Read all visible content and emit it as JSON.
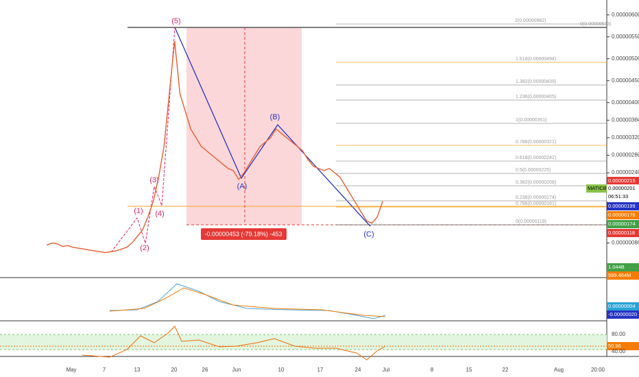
{
  "chart_data": {
    "type": "line",
    "symbol": "MATICBTC",
    "color": "#e8663c",
    "values": [
      7.5e-07,
      8e-07,
      7.8e-07,
      7.2e-07,
      7.4e-07,
      7e-07,
      6.8e-07,
      6.6e-07,
      6.4e-07,
      6.2e-07,
      6e-07,
      5.8e-07,
      6e-07,
      6.2e-07,
      6.6e-07,
      7e-07,
      8e-07,
      9.5e-07,
      1.1e-06,
      1.4e-06,
      1.75e-06,
      2.3e-06,
      3e-06,
      4.2e-06,
      5.4e-06,
      4.2e-06,
      3.8e-06,
      3.4e-06,
      3.2e-06,
      3e-06,
      2.9e-06,
      2.8e-06,
      2.7e-06,
      2.6e-06,
      2.5e-06,
      2.45e-06,
      2.25e-06,
      2.4e-06,
      2.6e-06,
      2.8e-06,
      3e-06,
      3.1e-06,
      3.2e-06,
      3.4e-06,
      3.3e-06,
      3.2e-06,
      3.1e-06,
      3e-06,
      2.9e-06,
      2.7e-06,
      2.55e-06,
      2.5e-06,
      2.45e-06,
      2.5e-06,
      2.4e-06,
      2.3e-06,
      2.1e-06,
      1.9e-06,
      1.7e-06,
      1.5e-06,
      1.3e-06,
      1.25e-06,
      1.4e-06,
      1.75e-06
    ],
    "ylim": [
      1e-08,
      6.34e-06
    ],
    "yticks": [
      {
        "value": 6e-06,
        "label": "0.00000600"
      },
      {
        "value": 5.5e-06,
        "label": "0.00000550"
      },
      {
        "value": 5e-06,
        "label": "0.00000500"
      },
      {
        "value": 4.5e-06,
        "label": "0.00000450"
      },
      {
        "value": 4e-06,
        "label": "0.00000400"
      },
      {
        "value": 3.6e-06,
        "label": "0.00000360"
      },
      {
        "value": 3.2e-06,
        "label": "0.00000320"
      },
      {
        "value": 2.8e-06,
        "label": "0.00000280"
      },
      {
        "value": 2.4e-06,
        "label": "0.00000240"
      },
      {
        "value": 8e-07,
        "label": "0.00000080"
      }
    ],
    "xticks": [
      "May",
      "7",
      "13",
      "20",
      "26",
      "Jun",
      "10",
      "17",
      "24",
      "Jul",
      "8",
      "15",
      "22",
      "Aug",
      "20:00"
    ],
    "waves": [
      "(1)",
      "(2)",
      "(3)",
      "(4)",
      "(5)",
      "(A)",
      "(B)",
      "(C)"
    ],
    "fib_labels": [
      "2(0.00000982)",
      "0(0.00000573)",
      "1.618(0.00000494)",
      "1.382(0.00000439)",
      "1.236(0.00000405)",
      "1(0.00000351)",
      "0.786(0.00000321)",
      "0.618(0.00000242)",
      "0.5(0.00000225)",
      "0.382(0.00000208)",
      "0.236(0.00000174)",
      "0.786(0.00000161)",
      "0(0.00000119)"
    ],
    "measure": "-0.00000453 (-79.18%) -453",
    "badges": [
      "0.00000215",
      "MATICBTC",
      "0.00000201",
      "06:51:33",
      "0.00000199",
      "0.00000176",
      "0.00000174",
      "0.00000118",
      "1.044B",
      "599.464M",
      "0.00000004",
      "-0.00000020",
      "50.96"
    ],
    "rsi_ticks": [
      "80.00",
      "40.00"
    ]
  }
}
